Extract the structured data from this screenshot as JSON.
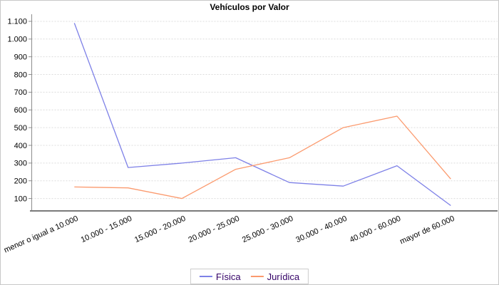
{
  "chart_data": {
    "type": "line",
    "title": "Vehículos por Valor",
    "categories": [
      "menor o igual a 10.000",
      "10.000 - 15.000",
      "15.000 - 20.000",
      "20.000 - 25.000",
      "25.000 - 30.000",
      "30.000 - 40.000",
      "40.000 - 60.000",
      "mayor de 60.000"
    ],
    "series": [
      {
        "name": "Física",
        "color": "#7e81e7",
        "values": [
          1090,
          275,
          300,
          330,
          190,
          170,
          285,
          60
        ]
      },
      {
        "name": "Jurídica",
        "color": "#fb9a6e",
        "values": [
          165,
          160,
          100,
          265,
          330,
          500,
          565,
          210
        ]
      }
    ],
    "y_ticks": [
      "1.100",
      "1.000",
      "900",
      "800",
      "700",
      "600",
      "500",
      "400",
      "300",
      "200",
      "100"
    ],
    "y_tick_values": [
      1100,
      1000,
      900,
      800,
      700,
      600,
      500,
      400,
      300,
      200,
      100
    ],
    "ylim": [
      30,
      1140
    ],
    "grid": "horizontal-dashed",
    "legend_position": "bottom-center",
    "colors": {
      "grid": "#dcdcdc",
      "y_axis": "#8c8c8c",
      "x_axis": "#7a7a7a",
      "tick_label": "#000000",
      "category_label": "#000000",
      "legend_text": "#330066",
      "legend_border": "#cccccc",
      "title": "#000000"
    }
  }
}
